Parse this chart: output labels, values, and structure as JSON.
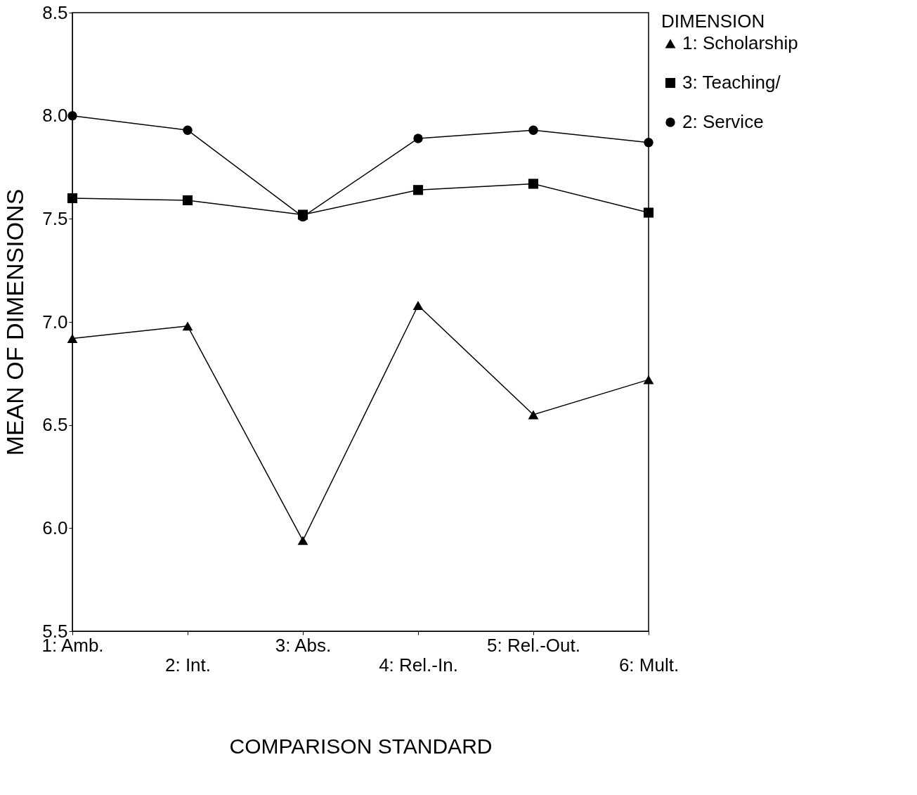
{
  "chart_data": {
    "type": "line",
    "xlabel": "COMPARISON STANDARD",
    "ylabel": "MEAN OF DIMENSIONS",
    "legend_title": "DIMENSION",
    "categories": [
      "1: Amb.",
      "2: Int.",
      "3: Abs.",
      "4: Rel.-In.",
      "5: Rel.-Out.",
      "6: Mult."
    ],
    "series": [
      {
        "name": "1: Scholarship",
        "color": "#000000",
        "marker": "triangle",
        "values": [
          6.92,
          6.98,
          5.94,
          7.08,
          6.55,
          6.72
        ]
      },
      {
        "name": "3: Teaching/",
        "color": "#000000",
        "marker": "square",
        "values": [
          7.6,
          7.59,
          7.52,
          7.64,
          7.67,
          7.53
        ]
      },
      {
        "name": "2: Service",
        "color": "#000000",
        "marker": "circle",
        "values": [
          8.0,
          7.93,
          7.51,
          7.89,
          7.93,
          7.87
        ]
      }
    ],
    "ylim": [
      5.5,
      8.5
    ],
    "yticks": [
      5.5,
      {
        "value": 6,
        "label": "6.0"
      },
      6.5,
      {
        "value": 7,
        "label": "7.0"
      },
      7.5,
      {
        "value": 8,
        "label": "8.0"
      },
      8.5
    ],
    "grid": false,
    "legend": "right",
    "line_style": "solid"
  }
}
